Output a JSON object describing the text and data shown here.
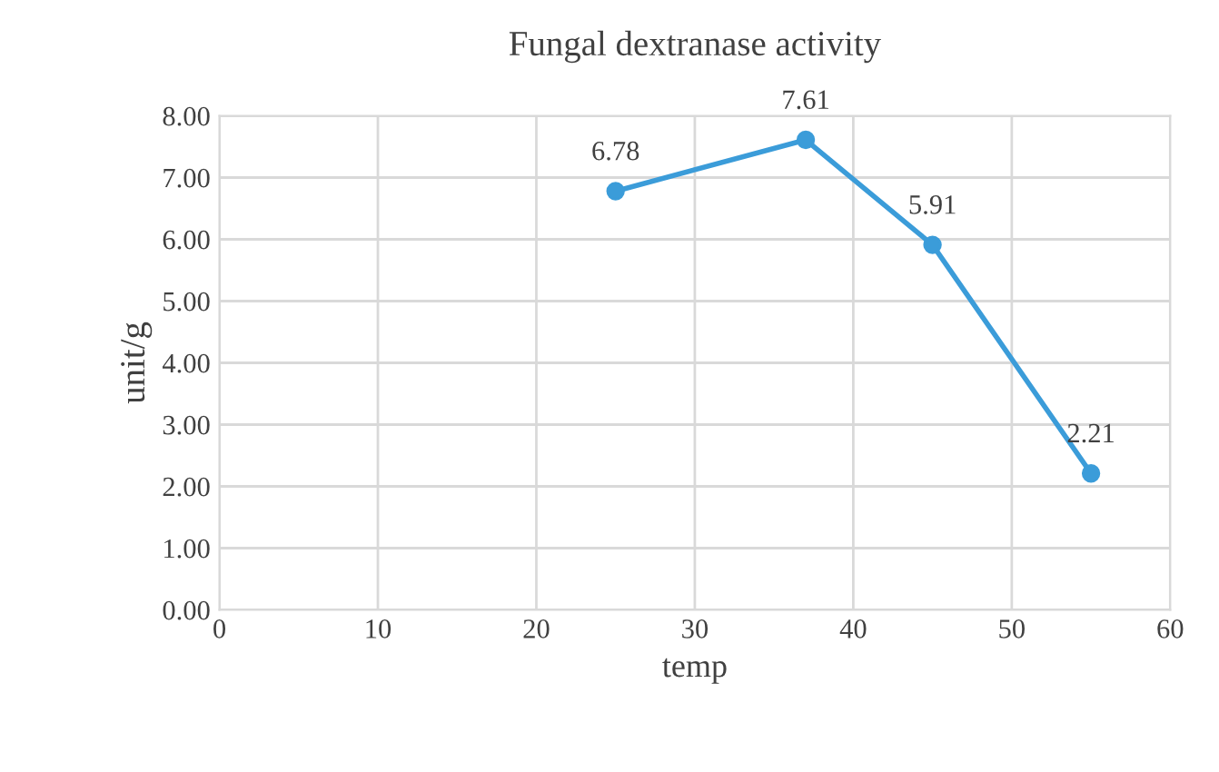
{
  "chart_data": {
    "type": "line",
    "title": "Fungal dextranase activity",
    "xlabel": "temp",
    "ylabel": "unit/g",
    "x": [
      25,
      37,
      45,
      55
    ],
    "series": [
      {
        "color": "#3b9cd9",
        "values": [
          6.78,
          7.61,
          5.91,
          2.21
        ]
      }
    ],
    "xlim": [
      0,
      60
    ],
    "xticks": [
      0,
      10,
      20,
      30,
      40,
      50,
      60
    ],
    "ylim": [
      0,
      8
    ],
    "yticks": [
      {
        "value": 0,
        "label": "0.00"
      },
      {
        "value": 1,
        "label": "1.00"
      },
      {
        "value": 2,
        "label": "2.00"
      },
      {
        "value": 3,
        "label": "3.00"
      },
      {
        "value": 4,
        "label": "4.00"
      },
      {
        "value": 5,
        "label": "5.00"
      },
      {
        "value": 6,
        "label": "6.00"
      },
      {
        "value": 7,
        "label": "7.00"
      },
      {
        "value": 8,
        "label": "8.00"
      }
    ],
    "grid": true,
    "marker": "circle",
    "line_style": "solid",
    "data_labels": true,
    "legend": false
  }
}
